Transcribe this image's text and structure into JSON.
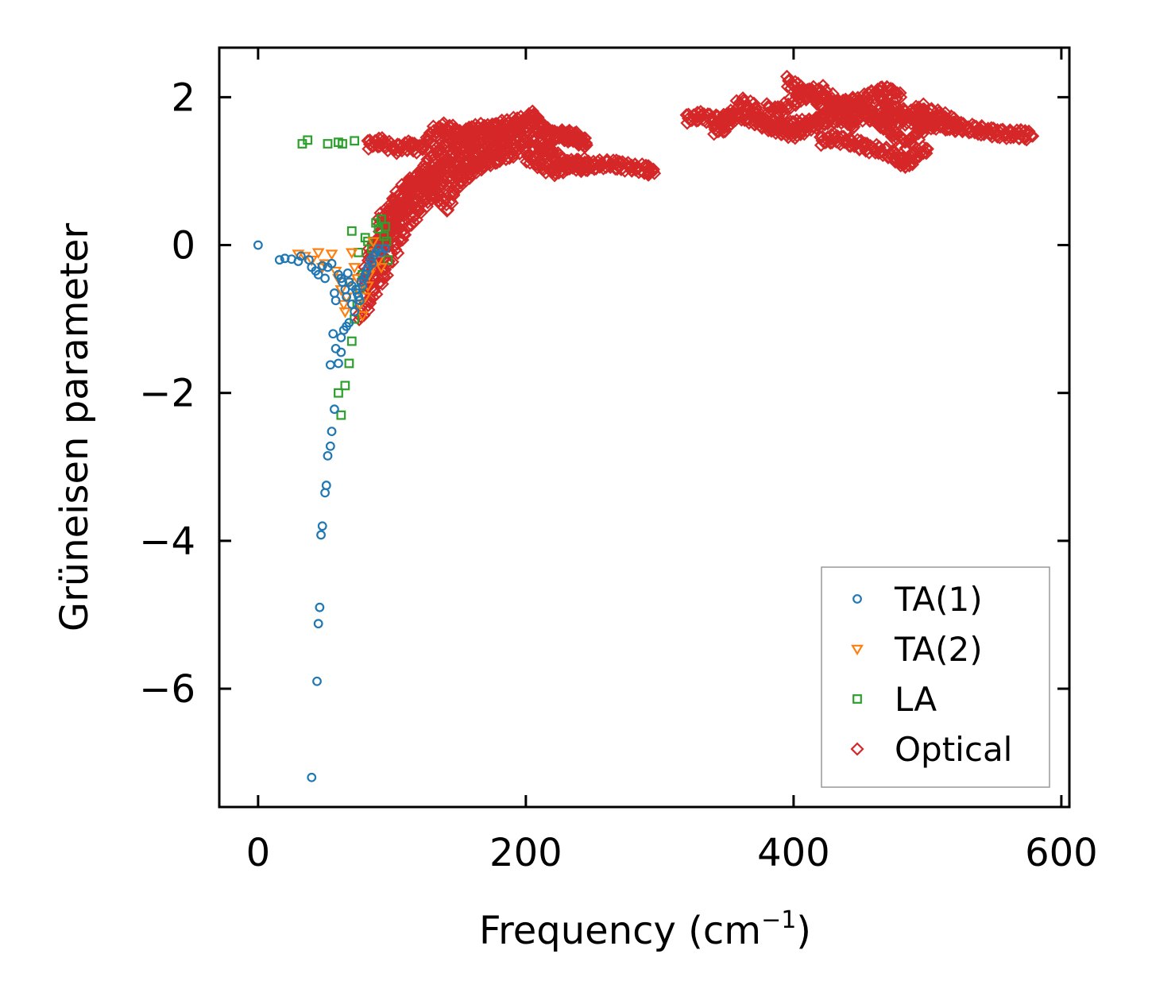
{
  "chart_data": {
    "type": "scatter",
    "title": "",
    "xlabel": "Frequency (cm",
    "xlabel_superscript": "−1",
    "xlabel_suffix": ")",
    "ylabel": "Grüneisen parameter",
    "xlim": [
      -29,
      606
    ],
    "ylim": [
      -7.6,
      2.67
    ],
    "xticks": [
      0,
      200,
      400,
      600
    ],
    "xtick_labels": [
      "0",
      "200",
      "400",
      "600"
    ],
    "yticks": [
      -6,
      -4,
      -2,
      0,
      2
    ],
    "ytick_labels": [
      "−6",
      "−4",
      "−2",
      "0",
      "2"
    ],
    "grid": false,
    "legend_position": "lower-right",
    "series": [
      {
        "name": "TA(1)",
        "marker": "circle",
        "color": "#1f77b4",
        "x": [
          0,
          16,
          20,
          25,
          30,
          32,
          38,
          40,
          43,
          45,
          48,
          50,
          52,
          55,
          57,
          58,
          60,
          62,
          63,
          65,
          66,
          67,
          68,
          70,
          70,
          72,
          73,
          74,
          75,
          76,
          77,
          78,
          79,
          80,
          81,
          82,
          84,
          85,
          86,
          88,
          90,
          92,
          95,
          68,
          66,
          64,
          62,
          62,
          60,
          58,
          56,
          54,
          57,
          55,
          54,
          52,
          51,
          50,
          48,
          47,
          46,
          45,
          44,
          40
        ],
        "y": [
          0.0,
          -0.2,
          -0.18,
          -0.19,
          -0.22,
          -0.15,
          -0.2,
          -0.3,
          -0.35,
          -0.4,
          -0.28,
          -0.45,
          -0.3,
          -0.25,
          -0.65,
          -0.75,
          -0.4,
          -0.45,
          -0.5,
          -0.6,
          -0.7,
          -0.38,
          -0.5,
          -0.8,
          -0.55,
          -0.9,
          -0.6,
          -0.65,
          -0.7,
          -0.75,
          -0.5,
          -0.55,
          -0.45,
          -0.4,
          -0.35,
          -0.3,
          -0.2,
          -0.25,
          -0.15,
          -0.1,
          -0.05,
          -0.1,
          -0.05,
          -1.05,
          -1.1,
          -1.15,
          -1.25,
          -1.45,
          -1.6,
          -1.4,
          -1.2,
          -1.62,
          -2.22,
          -2.52,
          -2.72,
          -2.85,
          -3.25,
          -3.35,
          -3.8,
          -3.92,
          -4.9,
          -5.12,
          -5.9,
          -7.2
        ]
      },
      {
        "name": "TA(2)",
        "marker": "triangle-down",
        "color": "#ff7f0e",
        "x": [
          30,
          35,
          40,
          45,
          48,
          50,
          55,
          58,
          60,
          62,
          64,
          65,
          66,
          68,
          70,
          72,
          74,
          75,
          76,
          78,
          80,
          82,
          83,
          85,
          86,
          88,
          90,
          92
        ],
        "y": [
          -0.12,
          -0.15,
          -0.2,
          -0.1,
          -0.3,
          -0.25,
          -0.12,
          -0.35,
          -0.45,
          -0.6,
          -0.8,
          -0.9,
          -0.7,
          -0.5,
          -0.1,
          -0.3,
          -0.45,
          -0.6,
          -0.8,
          -0.95,
          -0.7,
          -0.55,
          -0.4,
          -0.3,
          0.05,
          -0.1,
          -0.2,
          -0.3
        ]
      },
      {
        "name": "LA",
        "marker": "square",
        "color": "#2ca02c",
        "x": [
          33,
          37,
          52,
          60,
          63,
          72,
          70,
          75,
          80,
          82,
          85,
          88,
          90,
          92,
          94,
          95,
          96,
          97,
          78,
          76,
          74,
          72,
          70,
          68,
          65,
          60,
          62
        ],
        "y": [
          1.37,
          1.42,
          1.37,
          1.39,
          1.37,
          1.41,
          0.19,
          -0.1,
          0.1,
          0.05,
          -0.05,
          0.3,
          0.22,
          0.35,
          0.12,
          0.25,
          0.05,
          -0.2,
          -0.4,
          -0.6,
          -0.8,
          -1.0,
          -1.3,
          -1.6,
          -1.9,
          -2.0,
          -2.3
        ]
      },
      {
        "name": "Optical",
        "marker": "diamond",
        "color": "#d62728",
        "segments": [
          {
            "x": [
              82,
              90,
              100,
              110,
              120,
              130,
              140,
              150,
              160,
              170,
              180,
              190,
              200,
              205
            ],
            "y": [
              -0.2,
              0.1,
              0.4,
              0.7,
              0.85,
              0.95,
              1.05,
              1.15,
              1.25,
              1.35,
              1.45,
              1.55,
              1.65,
              1.75
            ]
          },
          {
            "x": [
              90,
              100,
              110,
              120,
              130,
              140,
              150,
              160,
              170,
              180,
              190,
              200
            ],
            "y": [
              0.3,
              0.55,
              0.8,
              0.95,
              0.75,
              0.5,
              0.85,
              1.0,
              1.15,
              1.3,
              1.45,
              1.6
            ]
          },
          {
            "x": [
              78,
              88,
              98,
              108,
              118,
              128,
              138,
              148,
              158,
              168,
              178,
              188,
              198
            ],
            "y": [
              -0.45,
              -0.15,
              0.15,
              0.45,
              0.65,
              0.9,
              1.1,
              1.3,
              1.45,
              1.55,
              1.6,
              1.65,
              1.7
            ]
          },
          {
            "x": [
              75,
              85,
              95,
              105,
              115,
              125,
              135,
              145,
              155,
              165,
              175,
              185,
              195,
              205
            ],
            "y": [
              -1.0,
              -0.7,
              -0.35,
              0.05,
              0.35,
              0.6,
              0.8,
              0.95,
              1.05,
              1.1,
              1.15,
              1.2,
              1.3,
              1.45
            ]
          },
          {
            "x": [
              80,
              90,
              100,
              110,
              120,
              130,
              140,
              150,
              160,
              170,
              180
            ],
            "y": [
              -0.6,
              -0.25,
              0.2,
              0.55,
              0.9,
              1.2,
              1.4,
              1.5,
              1.55,
              1.6,
              1.45
            ]
          },
          {
            "x": [
              205,
              210,
              215,
              220,
              225,
              230,
              235,
              240,
              245
            ],
            "y": [
              1.75,
              1.6,
              1.55,
              1.45,
              1.5,
              1.45,
              1.5,
              1.4,
              1.38
            ]
          },
          {
            "x": [
              205,
              212,
              218,
              225,
              232,
              240,
              250,
              260,
              270,
              280,
              290,
              295
            ],
            "y": [
              1.4,
              1.3,
              1.25,
              1.15,
              1.1,
              1.05,
              1.08,
              1.1,
              1.08,
              1.05,
              1.02,
              1.0
            ]
          },
          {
            "x": [
              200,
              210,
              220,
              228,
              236,
              244
            ],
            "y": [
              1.2,
              1.1,
              1.0,
              1.05,
              1.1,
              1.12
            ]
          },
          {
            "x": [
              82,
              92,
              102,
              112,
              122,
              132,
              142,
              152,
              162
            ],
            "y": [
              1.35,
              1.4,
              1.3,
              1.35,
              1.3,
              1.55,
              1.6,
              1.45,
              1.4
            ]
          },
          {
            "x": [
              320,
              330,
              340,
              350,
              360,
              370,
              380,
              390,
              400,
              410,
              420,
              430,
              440,
              450,
              460,
              470,
              480,
              490,
              500,
              510,
              520,
              530,
              540,
              550,
              560,
              570,
              578
            ],
            "y": [
              1.7,
              1.75,
              1.7,
              1.72,
              1.75,
              1.68,
              1.65,
              1.6,
              1.62,
              1.65,
              1.68,
              1.7,
              1.72,
              1.75,
              1.72,
              1.7,
              1.68,
              1.7,
              1.65,
              1.62,
              1.6,
              1.58,
              1.55,
              1.52,
              1.5,
              1.5,
              1.48
            ]
          },
          {
            "x": [
              340,
              350,
              360,
              370,
              380,
              390,
              400,
              410,
              420,
              430,
              440,
              450,
              460,
              470,
              480
            ],
            "y": [
              1.55,
              1.6,
              1.95,
              1.85,
              1.6,
              1.55,
              1.5,
              1.58,
              1.7,
              1.9,
              1.85,
              1.95,
              2.05,
              2.1,
              2.0
            ]
          },
          {
            "x": [
              395,
              405,
              415,
              425,
              435,
              445,
              455,
              465,
              475,
              485,
              495,
              505,
              515,
              525
            ],
            "y": [
              2.22,
              2.1,
              2.0,
              1.85,
              1.9,
              1.95,
              1.8,
              1.65,
              1.5,
              1.35,
              1.55,
              1.8,
              1.7,
              1.6
            ]
          },
          {
            "x": [
              420,
              430,
              440,
              450,
              460,
              470,
              480,
              484,
              490,
              500
            ],
            "y": [
              1.4,
              1.45,
              1.4,
              1.35,
              1.3,
              1.25,
              1.15,
              1.1,
              1.2,
              1.3
            ]
          },
          {
            "x": [
              465,
              470,
              480,
              490,
              495,
              500,
              505
            ],
            "y": [
              1.95,
              1.85,
              1.8,
              1.75,
              1.85,
              1.7,
              1.6
            ]
          },
          {
            "x": [
              380,
              390,
              400,
              410,
              420,
              430,
              440,
              445
            ],
            "y": [
              1.85,
              1.8,
              1.95,
              2.05,
              2.1,
              1.95,
              1.75,
              1.6
            ]
          }
        ]
      }
    ]
  }
}
